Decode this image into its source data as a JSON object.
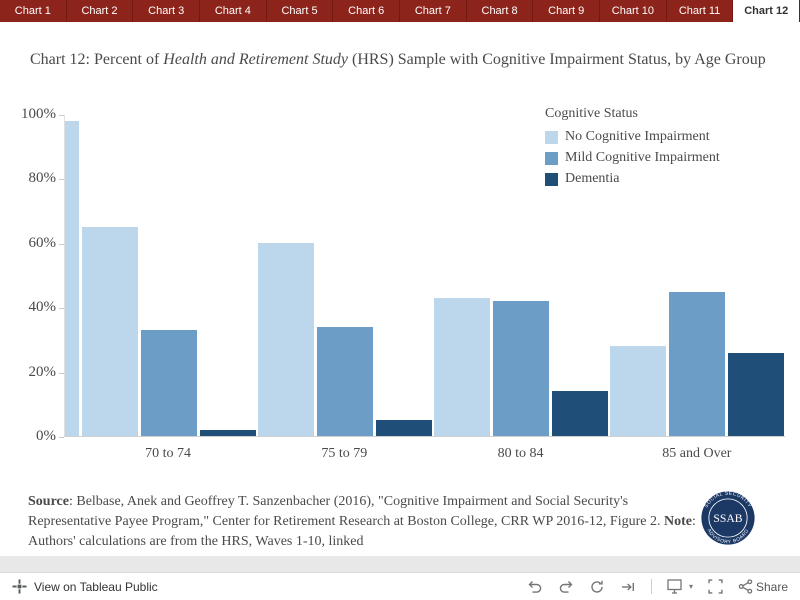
{
  "tabs": {
    "items": [
      "Chart 1",
      "Chart 2",
      "Chart 3",
      "Chart 4",
      "Chart 5",
      "Chart 6",
      "Chart 7",
      "Chart 8",
      "Chart 9",
      "Chart 10",
      "Chart 11",
      "Chart 12"
    ],
    "active": "Chart 12"
  },
  "title": {
    "prefix": "Chart 12: Percent of ",
    "italic": "Health and Retirement Study",
    "suffix": " (HRS) Sample with Cognitive Impairment Status, by Age Group"
  },
  "chart_data": {
    "type": "bar",
    "categories": [
      "70 to 74",
      "75 to 79",
      "80 to 84",
      "85 and Over"
    ],
    "series": [
      {
        "name": "No Cognitive Impairment",
        "color": "#BCD7EB",
        "values": [
          65,
          60,
          43,
          28
        ]
      },
      {
        "name": "Mild Cognitive Impairment",
        "color": "#6B9DC7",
        "values": [
          33,
          34,
          42,
          45
        ]
      },
      {
        "name": "Dementia",
        "color": "#1F4E79",
        "values": [
          2,
          5,
          14,
          26
        ]
      }
    ],
    "legend_title": "Cognitive Status",
    "legend_position": "top-right",
    "y_ticks": [
      "100%",
      "80%",
      "60%",
      "40%",
      "20%",
      "0%"
    ],
    "ylim": [
      0,
      100
    ],
    "grid": false,
    "clipped_bar_left": {
      "series": "No Cognitive Impairment",
      "value": 98
    }
  },
  "footer": {
    "source_label": "Source",
    "source_text": ": Belbase, Anek and Geoffrey T. Sanzenbacher (2016), \"Cognitive Impairment and Social Security's Representative Payee Program,\" Center for Retirement Research at Boston College, CRR WP 2016-12, Figure 2. ",
    "note_label": "Note",
    "note_text": ": Authors' calculations are from the HRS, Waves 1-10, linked"
  },
  "logo": {
    "center": "SSAB",
    "arc_top": "SOCIAL SECURITY",
    "arc_bottom": "ADVISORY BOARD",
    "color": "#1C3966"
  },
  "toolbar": {
    "left_label": "View on Tableau Public",
    "share_label": "Share"
  },
  "colors": {
    "tab_bar": "#8C241B",
    "text": "#4A4A4A"
  }
}
